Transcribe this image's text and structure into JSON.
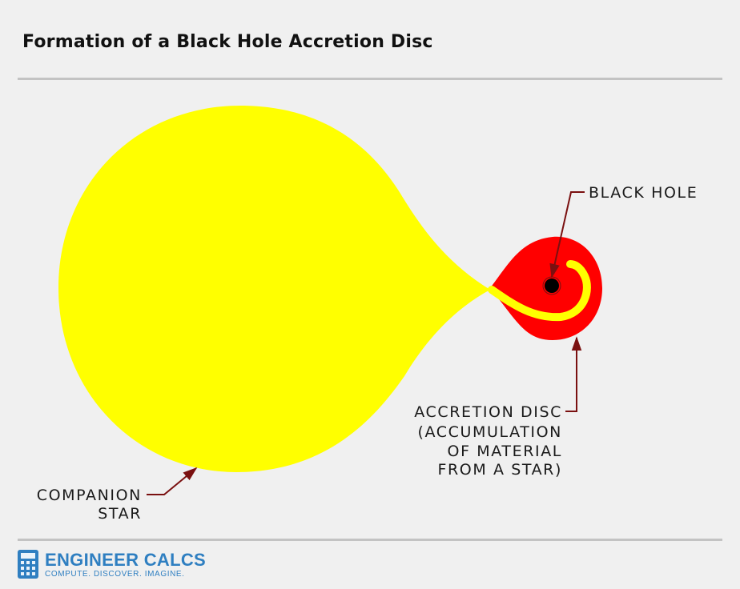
{
  "title": "Formation of a Black Hole Accretion Disc",
  "labels": {
    "black_hole": "BLACK HOLE",
    "accretion_disc": [
      "ACCRETION DISC",
      "(ACCUMULATION",
      "OF MATERIAL",
      "FROM A STAR)"
    ],
    "companion_star": [
      "COMPANION",
      "STAR"
    ]
  },
  "colors": {
    "star": "#ffff00",
    "disc": "#ff0000",
    "black_hole": "#000000",
    "leader": "#7a1010",
    "rule": "#c3c3c3",
    "brand": "#2f7fc1"
  },
  "logo": {
    "name": "ENGINEER CALCS",
    "tagline": "COMPUTE. DISCOVER. IMAGINE.",
    "icon": "calculator-icon"
  }
}
